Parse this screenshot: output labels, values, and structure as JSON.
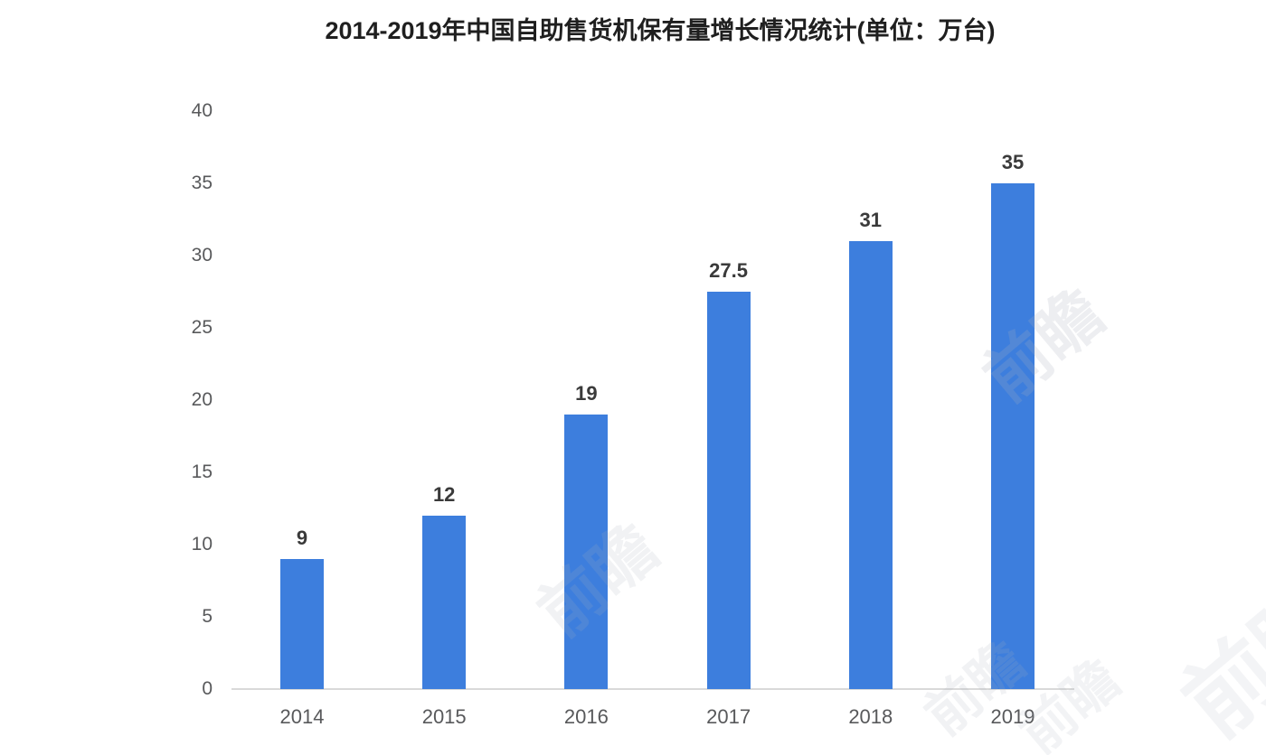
{
  "chart_data": {
    "type": "bar",
    "title": "2014-2019年中国自助售货机保有量增长情况统计(单位：万台)",
    "categories": [
      "2014",
      "2015",
      "2016",
      "2017",
      "2018",
      "2019"
    ],
    "values": [
      9,
      12,
      19,
      27.5,
      31,
      35
    ],
    "value_labels": [
      "9",
      "12",
      "19",
      "27.5",
      "31",
      "35"
    ],
    "yticks": [
      0,
      5,
      10,
      15,
      20,
      25,
      30,
      35,
      40
    ],
    "ylim": [
      0,
      40
    ],
    "xlabel": "",
    "ylabel": "",
    "grid": false,
    "legend": false,
    "bar_color": "#3d7edd",
    "axis_label_color": "#58595b",
    "value_label_color": "#3a3a3a",
    "title_color": "#1f1f1f",
    "baseline_color": "#d9d9d9"
  },
  "watermark": "前瞻"
}
